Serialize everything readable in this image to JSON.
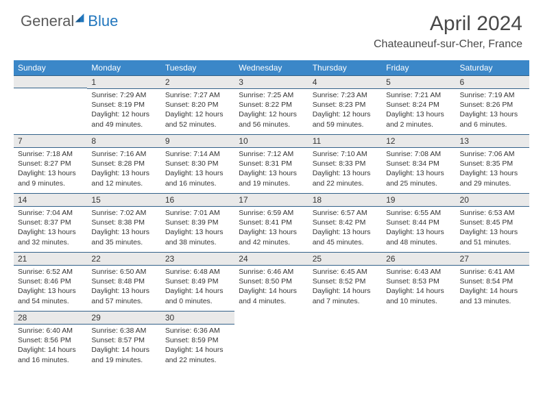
{
  "brand": {
    "part1": "General",
    "part2": "Blue"
  },
  "title": "April 2024",
  "location": "Chateauneuf-sur-Cher, France",
  "colors": {
    "header_bg": "#3b87c8",
    "header_text": "#ffffff",
    "daynum_bg": "#e9e9e9",
    "border": "#305f87",
    "brand_gray": "#5a5a5a",
    "brand_blue": "#2176bd"
  },
  "weekdays": [
    "Sunday",
    "Monday",
    "Tuesday",
    "Wednesday",
    "Thursday",
    "Friday",
    "Saturday"
  ],
  "start_offset": 1,
  "days": [
    {
      "n": 1,
      "sunrise": "7:29 AM",
      "sunset": "8:19 PM",
      "daylight": "12 hours and 49 minutes."
    },
    {
      "n": 2,
      "sunrise": "7:27 AM",
      "sunset": "8:20 PM",
      "daylight": "12 hours and 52 minutes."
    },
    {
      "n": 3,
      "sunrise": "7:25 AM",
      "sunset": "8:22 PM",
      "daylight": "12 hours and 56 minutes."
    },
    {
      "n": 4,
      "sunrise": "7:23 AM",
      "sunset": "8:23 PM",
      "daylight": "12 hours and 59 minutes."
    },
    {
      "n": 5,
      "sunrise": "7:21 AM",
      "sunset": "8:24 PM",
      "daylight": "13 hours and 2 minutes."
    },
    {
      "n": 6,
      "sunrise": "7:19 AM",
      "sunset": "8:26 PM",
      "daylight": "13 hours and 6 minutes."
    },
    {
      "n": 7,
      "sunrise": "7:18 AM",
      "sunset": "8:27 PM",
      "daylight": "13 hours and 9 minutes."
    },
    {
      "n": 8,
      "sunrise": "7:16 AM",
      "sunset": "8:28 PM",
      "daylight": "13 hours and 12 minutes."
    },
    {
      "n": 9,
      "sunrise": "7:14 AM",
      "sunset": "8:30 PM",
      "daylight": "13 hours and 16 minutes."
    },
    {
      "n": 10,
      "sunrise": "7:12 AM",
      "sunset": "8:31 PM",
      "daylight": "13 hours and 19 minutes."
    },
    {
      "n": 11,
      "sunrise": "7:10 AM",
      "sunset": "8:33 PM",
      "daylight": "13 hours and 22 minutes."
    },
    {
      "n": 12,
      "sunrise": "7:08 AM",
      "sunset": "8:34 PM",
      "daylight": "13 hours and 25 minutes."
    },
    {
      "n": 13,
      "sunrise": "7:06 AM",
      "sunset": "8:35 PM",
      "daylight": "13 hours and 29 minutes."
    },
    {
      "n": 14,
      "sunrise": "7:04 AM",
      "sunset": "8:37 PM",
      "daylight": "13 hours and 32 minutes."
    },
    {
      "n": 15,
      "sunrise": "7:02 AM",
      "sunset": "8:38 PM",
      "daylight": "13 hours and 35 minutes."
    },
    {
      "n": 16,
      "sunrise": "7:01 AM",
      "sunset": "8:39 PM",
      "daylight": "13 hours and 38 minutes."
    },
    {
      "n": 17,
      "sunrise": "6:59 AM",
      "sunset": "8:41 PM",
      "daylight": "13 hours and 42 minutes."
    },
    {
      "n": 18,
      "sunrise": "6:57 AM",
      "sunset": "8:42 PM",
      "daylight": "13 hours and 45 minutes."
    },
    {
      "n": 19,
      "sunrise": "6:55 AM",
      "sunset": "8:44 PM",
      "daylight": "13 hours and 48 minutes."
    },
    {
      "n": 20,
      "sunrise": "6:53 AM",
      "sunset": "8:45 PM",
      "daylight": "13 hours and 51 minutes."
    },
    {
      "n": 21,
      "sunrise": "6:52 AM",
      "sunset": "8:46 PM",
      "daylight": "13 hours and 54 minutes."
    },
    {
      "n": 22,
      "sunrise": "6:50 AM",
      "sunset": "8:48 PM",
      "daylight": "13 hours and 57 minutes."
    },
    {
      "n": 23,
      "sunrise": "6:48 AM",
      "sunset": "8:49 PM",
      "daylight": "14 hours and 0 minutes."
    },
    {
      "n": 24,
      "sunrise": "6:46 AM",
      "sunset": "8:50 PM",
      "daylight": "14 hours and 4 minutes."
    },
    {
      "n": 25,
      "sunrise": "6:45 AM",
      "sunset": "8:52 PM",
      "daylight": "14 hours and 7 minutes."
    },
    {
      "n": 26,
      "sunrise": "6:43 AM",
      "sunset": "8:53 PM",
      "daylight": "14 hours and 10 minutes."
    },
    {
      "n": 27,
      "sunrise": "6:41 AM",
      "sunset": "8:54 PM",
      "daylight": "14 hours and 13 minutes."
    },
    {
      "n": 28,
      "sunrise": "6:40 AM",
      "sunset": "8:56 PM",
      "daylight": "14 hours and 16 minutes."
    },
    {
      "n": 29,
      "sunrise": "6:38 AM",
      "sunset": "8:57 PM",
      "daylight": "14 hours and 19 minutes."
    },
    {
      "n": 30,
      "sunrise": "6:36 AM",
      "sunset": "8:59 PM",
      "daylight": "14 hours and 22 minutes."
    }
  ],
  "labels": {
    "sunrise": "Sunrise:",
    "sunset": "Sunset:",
    "daylight": "Daylight:"
  }
}
